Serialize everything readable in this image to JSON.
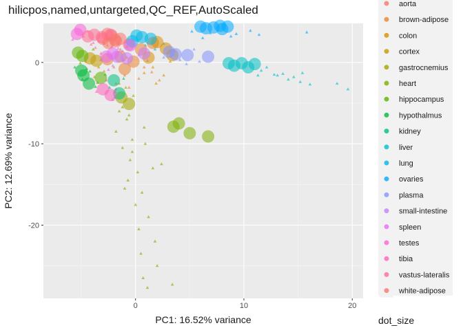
{
  "chart_data": {
    "type": "scatter",
    "title": "hilicpos,named,untargeted,QC_REF,AutoScaled",
    "xlabel": "PC1: 16.52% variance",
    "ylabel": "PC2: 12.69% variance",
    "xlim": [
      -8.5,
      21
    ],
    "ylim": [
      -29,
      4.8
    ],
    "x_ticks": [
      0,
      10,
      20
    ],
    "y_ticks": [
      0,
      -10,
      -20
    ],
    "grid": true,
    "legend_position": "right",
    "legend_title_size": "dot_size",
    "series": [
      {
        "name": "aorta",
        "color": "#F8766D",
        "circles": [
          [
            -2.2,
            3.3
          ],
          [
            -3.0,
            2.9
          ],
          [
            -1.8,
            2.6
          ],
          [
            -0.6,
            2.2
          ],
          [
            -2.6,
            3.5
          ]
        ],
        "triangles": [
          [
            -2.6,
            2.1
          ],
          [
            -1.4,
            1.6
          ],
          [
            -3.2,
            1.1
          ],
          [
            -0.8,
            0.6
          ],
          [
            -2.0,
            -0.6
          ]
        ]
      },
      {
        "name": "brown-adipose",
        "color": "#EA8331",
        "circles": [
          [
            -1.4,
            0.7
          ],
          [
            -0.2,
            0.1
          ],
          [
            -2.6,
            0.4
          ],
          [
            -1.0,
            -0.8
          ],
          [
            1.6,
            2.4
          ],
          [
            0.5,
            1.6
          ]
        ],
        "triangles": [
          [
            -1.0,
            -1.6
          ],
          [
            0.3,
            -2.0
          ],
          [
            -1.8,
            -2.6
          ],
          [
            0.8,
            -0.6
          ],
          [
            1.5,
            -1.2
          ],
          [
            2.2,
            -2.2
          ],
          [
            -0.6,
            -3.1
          ]
        ]
      },
      {
        "name": "colon",
        "color": "#D89000",
        "circles": [
          [
            2.0,
            2.5
          ],
          [
            2.8,
            1.7
          ],
          [
            1.2,
            0.6
          ],
          [
            3.4,
            0.9
          ]
        ],
        "triangles": [
          [
            1.6,
            -0.6
          ],
          [
            2.6,
            -1.6
          ],
          [
            0.8,
            -1.3
          ],
          [
            3.2,
            0.1
          ],
          [
            1.9,
            -2.6
          ]
        ]
      },
      {
        "name": "cortex",
        "color": "#C09B00",
        "circles": [
          [
            -4.2,
            0.5
          ],
          [
            -3.6,
            0.2
          ]
        ],
        "triangles": [
          [
            -3.4,
            -0.6
          ],
          [
            -4.6,
            0.1
          ],
          [
            -2.9,
            -1.1
          ],
          [
            -3.8,
            -1.8
          ]
        ]
      },
      {
        "name": "gastrocnemius",
        "color": "#A3A500",
        "circles": [
          [
            -1.3,
            -4.3
          ],
          [
            -0.6,
            -5.1
          ]
        ],
        "triangles": [
          [
            -1.9,
            -3.6
          ],
          [
            -0.9,
            -3.1
          ],
          [
            -0.2,
            -4.1
          ],
          [
            -1.5,
            -2.6
          ]
        ]
      },
      {
        "name": "heart",
        "color": "#7CAE00",
        "circles": [
          [
            3.5,
            -7.9
          ],
          [
            4.0,
            -7.5
          ],
          [
            5.0,
            -8.7
          ],
          [
            6.7,
            -9.1
          ]
        ],
        "triangles": [
          [
            -1.5,
            -6.0
          ],
          [
            -0.8,
            -7.0
          ],
          [
            -1.8,
            -8.5
          ],
          [
            -0.3,
            -9.5
          ],
          [
            -1.2,
            -10.5
          ],
          [
            -0.5,
            -12.0
          ],
          [
            0.2,
            -13.5
          ],
          [
            -0.7,
            -14.5
          ],
          [
            0.6,
            -16.0
          ],
          [
            0.0,
            -17.5
          ],
          [
            1.2,
            -19.0
          ],
          [
            0.3,
            -20.5
          ],
          [
            1.8,
            -22.0
          ],
          [
            0.5,
            -23.5
          ],
          [
            2.0,
            -25.0
          ],
          [
            0.7,
            -26.5
          ],
          [
            3.4,
            -27.3
          ],
          [
            1.1,
            -27.7
          ],
          [
            -1.2,
            -5.5
          ],
          [
            0.8,
            -8.0
          ],
          [
            -0.3,
            -11.0
          ],
          [
            1.6,
            -13.0
          ],
          [
            -1.0,
            -15.5
          ],
          [
            2.4,
            -12.5
          ],
          [
            0.9,
            -10.0
          ],
          [
            -0.6,
            -6.5
          ]
        ]
      },
      {
        "name": "hippocampus",
        "color": "#5EB300",
        "circles": [
          [
            -5.3,
            1.2
          ],
          [
            -4.9,
            0.8
          ],
          [
            -3.2,
            -1.9
          ]
        ],
        "triangles": [
          [
            -4.5,
            -0.8
          ],
          [
            -3.9,
            1.6
          ],
          [
            -5.1,
            -0.1
          ],
          [
            -3.5,
            -2.5
          ]
        ]
      },
      {
        "name": "hypothalmus",
        "color": "#00BA38",
        "circles": [
          [
            -5.0,
            -1.0
          ],
          [
            -4.3,
            -2.6
          ],
          [
            -4.8,
            -1.6
          ]
        ],
        "triangles": [
          [
            -4.2,
            -1.1
          ],
          [
            -5.6,
            -0.6
          ],
          [
            -3.7,
            -3.0
          ],
          [
            -4.9,
            -2.1
          ]
        ]
      },
      {
        "name": "kidney",
        "color": "#00BF7D",
        "circles": [
          [
            -2.0,
            -2.2
          ],
          [
            -1.5,
            -3.8
          ]
        ],
        "triangles": [
          [
            -2.4,
            -3.1
          ],
          [
            -1.1,
            -2.0
          ],
          [
            -2.8,
            -1.5
          ],
          [
            -1.9,
            -4.3
          ]
        ]
      },
      {
        "name": "liver",
        "color": "#00BFC4",
        "circles": [
          [
            9.1,
            -0.4
          ],
          [
            9.8,
            -0.1
          ],
          [
            10.4,
            -0.6
          ],
          [
            8.6,
            -0.1
          ],
          [
            11.0,
            -0.2
          ]
        ],
        "triangles": [
          [
            11.6,
            -1.0
          ],
          [
            12.8,
            -1.5
          ],
          [
            13.6,
            -1.4
          ],
          [
            14.6,
            -1.8
          ],
          [
            15.2,
            -2.4
          ],
          [
            13.1,
            -1.6
          ],
          [
            19.6,
            -3.3
          ],
          [
            18.6,
            -2.6
          ],
          [
            12.1,
            -0.6
          ],
          [
            14.1,
            -2.1
          ],
          [
            15.4,
            -1.3
          ],
          [
            11.3,
            -1.6
          ],
          [
            16.1,
            -2.7
          ]
        ]
      },
      {
        "name": "lung",
        "color": "#00B8E7",
        "circles": [
          [
            0.6,
            3.1
          ],
          [
            -0.3,
            2.6
          ],
          [
            0.1,
            3.3
          ],
          [
            1.4,
            2.9
          ]
        ],
        "triangles": [
          [
            0.9,
            2.1
          ],
          [
            -0.8,
            1.9
          ],
          [
            1.8,
            1.6
          ],
          [
            2.6,
            2.3
          ]
        ]
      },
      {
        "name": "ovaries",
        "color": "#00A9FF",
        "circles": [
          [
            6.0,
            4.4
          ],
          [
            6.5,
            4.2
          ],
          [
            7.2,
            4.3
          ],
          [
            8.0,
            4.1
          ],
          [
            8.5,
            4.4
          ],
          [
            7.8,
            4.5
          ]
        ],
        "triangles": [
          [
            5.2,
            3.8
          ],
          [
            6.9,
            3.6
          ],
          [
            9.3,
            3.5
          ],
          [
            10.6,
            3.9
          ],
          [
            15.8,
            3.7
          ],
          [
            11.4,
            3.4
          ],
          [
            8.8,
            3.2
          ],
          [
            6.2,
            3.0
          ]
        ]
      },
      {
        "name": "plasma",
        "color": "#8494FF",
        "circles": [
          [
            3.1,
            1.3
          ],
          [
            3.7,
            1.0
          ],
          [
            4.8,
            0.9
          ],
          [
            6.7,
            0.7
          ]
        ],
        "triangles": [
          [
            4.1,
            0.3
          ],
          [
            5.4,
            1.6
          ],
          [
            2.6,
            0.6
          ],
          [
            4.7,
            -0.2
          ],
          [
            5.9,
            0.1
          ]
        ]
      },
      {
        "name": "small-intestine",
        "color": "#C77CFF",
        "circles": [
          [
            -1.7,
            0.7
          ],
          [
            -0.8,
            0.5
          ],
          [
            0.8,
            1.1
          ]
        ],
        "triangles": [
          [
            -1.2,
            1.4
          ],
          [
            0.3,
            0.9
          ],
          [
            -2.1,
            -0.4
          ],
          [
            1.1,
            0.2
          ]
        ]
      },
      {
        "name": "spleen",
        "color": "#E76BF3",
        "circles": [
          [
            -2.7,
            0.7
          ],
          [
            -2.1,
            1.1
          ],
          [
            -0.5,
            2.1
          ]
        ],
        "triangles": [
          [
            -3.2,
            0.3
          ],
          [
            -1.6,
            1.7
          ],
          [
            -2.5,
            -0.9
          ],
          [
            -1.1,
            0.3
          ]
        ]
      },
      {
        "name": "testes",
        "color": "#FA62DB",
        "circles": [
          [
            -5.1,
            4.0
          ],
          [
            -5.4,
            3.5
          ]
        ],
        "triangles": [
          [
            -4.8,
            3.2
          ],
          [
            -5.8,
            2.8
          ],
          [
            -4.4,
            3.8
          ],
          [
            -3.9,
            2.4
          ]
        ]
      },
      {
        "name": "tibia",
        "color": "#FF62BC",
        "circles": [
          [
            -2.3,
            -4.0
          ],
          [
            -3.0,
            -3.3
          ]
        ],
        "triangles": [
          [
            -2.7,
            -2.2
          ],
          [
            -3.6,
            -3.6
          ],
          [
            -1.8,
            -3.3
          ],
          [
            -2.1,
            -4.6
          ]
        ]
      },
      {
        "name": "vastus-lateralis",
        "color": "#FF6C91",
        "circles": [
          [
            -3.8,
            3.4
          ],
          [
            -3.1,
            3.1
          ],
          [
            -4.4,
            3.2
          ],
          [
            -2.3,
            3.4
          ]
        ],
        "triangles": [
          [
            -3.4,
            2.6
          ],
          [
            -4.1,
            2.2
          ],
          [
            -2.6,
            2.7
          ],
          [
            -3.7,
            1.8
          ]
        ]
      },
      {
        "name": "white-adipose",
        "color": "#F8766D",
        "circles": [
          [
            -1.9,
            2.8
          ],
          [
            -1.4,
            2.9
          ],
          [
            -2.5,
            2.4
          ]
        ],
        "triangles": [
          [
            -1.6,
            2.2
          ],
          [
            -2.2,
            1.9
          ],
          [
            -0.9,
            2.5
          ],
          [
            -2.9,
            2.3
          ]
        ]
      }
    ]
  }
}
